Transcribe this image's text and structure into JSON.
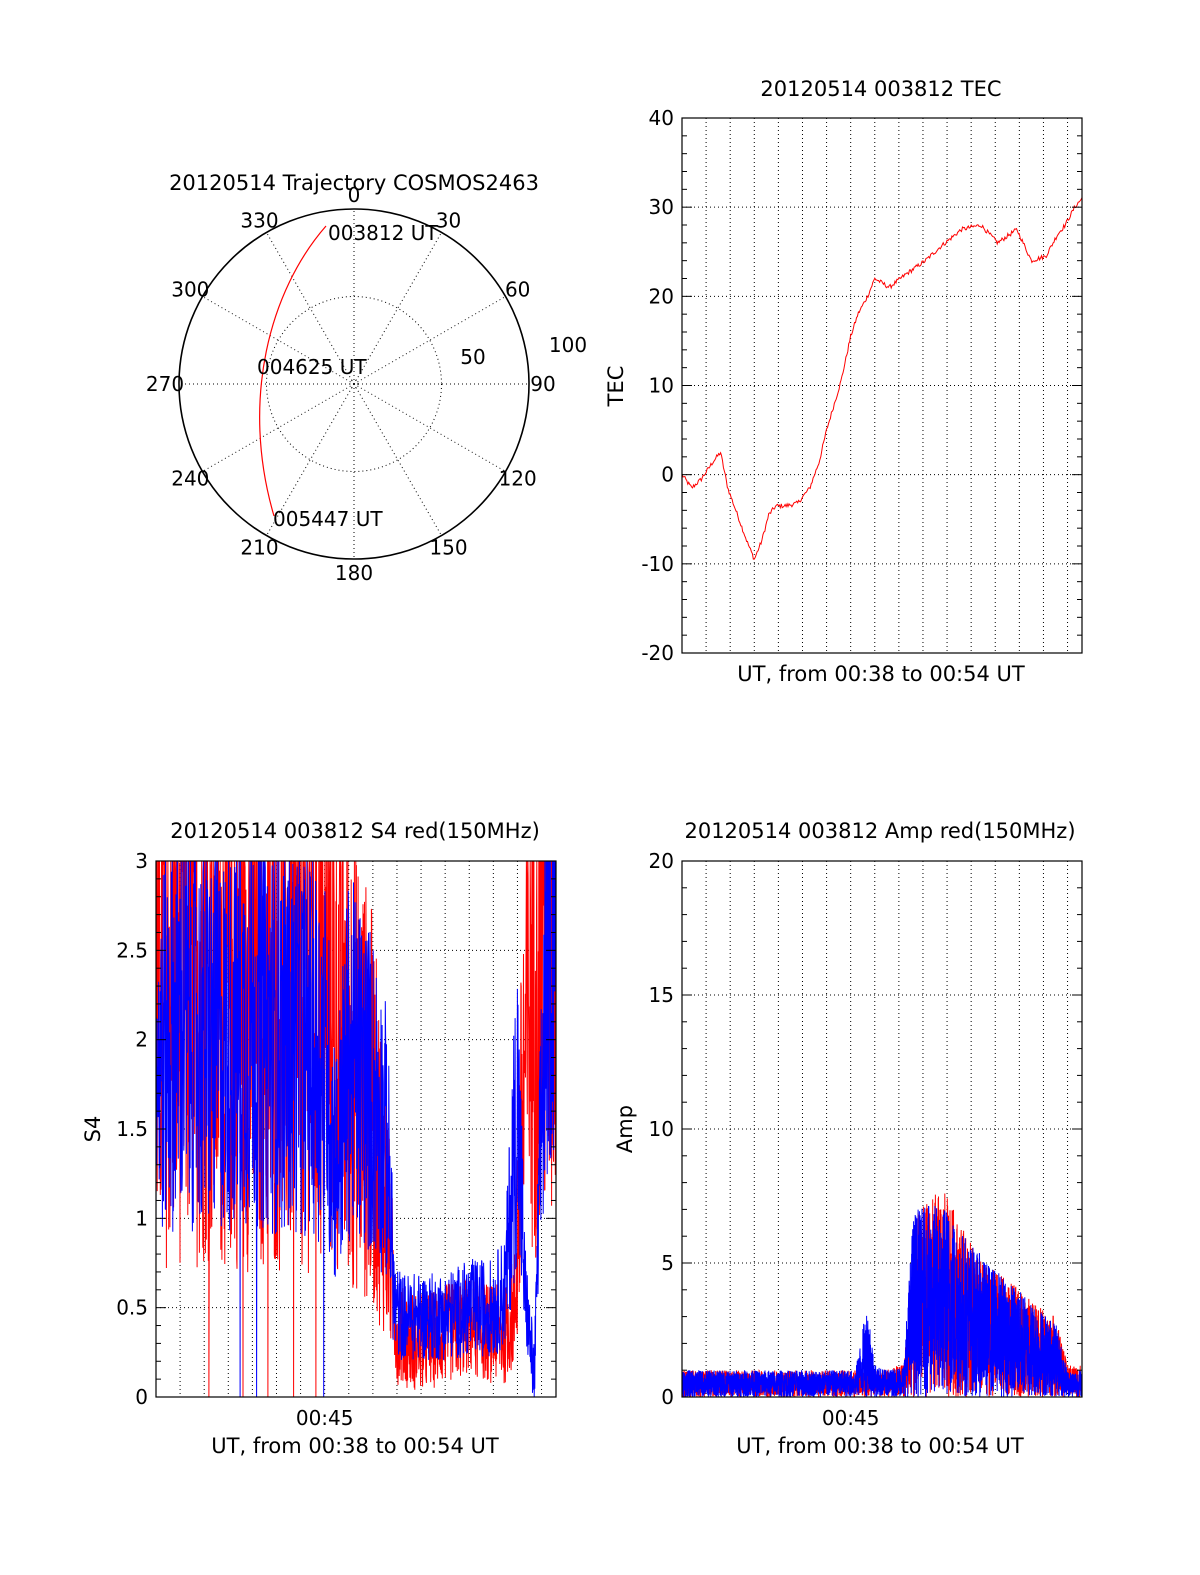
{
  "colors": {
    "red": "#ff0000",
    "blue": "#0000ff",
    "axis": "#000000"
  },
  "polar": {
    "title": "20120514 Trajectory COSMOS2463",
    "azimuth_labels": [
      "0",
      "30",
      "60",
      "90",
      "120",
      "150",
      "180",
      "210",
      "240",
      "270",
      "300",
      "330"
    ],
    "radius_labels": [
      "50",
      "100"
    ],
    "zenith_angle_max": 100,
    "annotations": {
      "start": "003812 UT",
      "mid": "004625 UT",
      "end": "005447 UT"
    }
  },
  "chart_data": [
    {
      "id": "tec",
      "type": "line",
      "title": "20120514 003812 TEC",
      "xlabel": "UT, from 00:38 to 00:54 UT",
      "ylabel": "TEC",
      "xlim": [
        0,
        16.6
      ],
      "ylim": [
        -20,
        40
      ],
      "yticks": [
        "-20",
        "-10",
        "0",
        "10",
        "20",
        "30",
        "40"
      ],
      "xticks": [],
      "grid": true,
      "series": [
        {
          "color": "red",
          "noise": 0.5,
          "x": [
            0,
            0.4,
            0.8,
            1.3,
            1.6,
            1.9,
            2.3,
            2.7,
            3.0,
            3.3,
            3.6,
            3.9,
            4.3,
            4.8,
            5.3,
            5.7,
            6.0,
            6.6,
            7.0,
            7.3,
            7.7,
            8.0,
            8.6,
            9.3,
            10.1,
            10.7,
            11.6,
            12.4,
            13.1,
            13.9,
            14.5,
            15.1,
            15.6,
            15.9,
            16.3,
            16.6
          ],
          "y": [
            0,
            -1.5,
            -0.5,
            1.5,
            2.5,
            -1.5,
            -4.5,
            -7.5,
            -9.5,
            -7.5,
            -4.5,
            -3.5,
            -3.5,
            -3.2,
            -1.5,
            1.5,
            5.0,
            10.5,
            15.5,
            18.0,
            20.0,
            22.0,
            21.0,
            22.5,
            24.0,
            25.5,
            27.5,
            28.0,
            26.0,
            27.5,
            24.0,
            24.5,
            27.0,
            28.0,
            30.0,
            31.0
          ]
        }
      ]
    },
    {
      "id": "s4",
      "type": "line",
      "title": "20120514 003812 S4 red(150MHz)",
      "xlabel": "UT, from 00:38 to 00:54 UT",
      "ylabel": "S4",
      "xlim": [
        0,
        16.6
      ],
      "ylim": [
        0,
        3
      ],
      "yticks": [
        "0",
        "0.5",
        "1",
        "1.5",
        "2",
        "2.5",
        "3"
      ],
      "xticks": [
        {
          "x": 7,
          "label": "00:45"
        }
      ],
      "grid": true,
      "series": [
        {
          "color": "red",
          "noise": 0.7,
          "x": [
            0,
            1,
            2,
            3,
            4,
            5,
            6,
            7,
            8,
            9,
            9.6,
            10.0,
            11,
            12,
            13,
            14,
            14.5,
            14.9,
            15.2,
            15.6,
            16.0,
            16.6
          ],
          "y": [
            2.3,
            2.4,
            2.4,
            2.3,
            2.3,
            2.2,
            2.3,
            2.2,
            2.0,
            1.6,
            1.0,
            0.35,
            0.3,
            0.35,
            0.4,
            0.35,
            0.35,
            0.5,
            1.6,
            2.5,
            2.7,
            2.8
          ]
        },
        {
          "color": "blue",
          "noise": 0.55,
          "x": [
            0,
            1,
            2,
            3,
            4,
            5,
            6,
            7,
            7.5,
            8,
            9,
            9.6,
            9.9,
            10.2,
            11,
            12,
            13,
            14,
            14.5,
            15.0,
            15.3,
            15.7,
            16.0,
            16.3,
            16.6
          ],
          "y": [
            1.9,
            2.1,
            2.0,
            2.0,
            2.1,
            2.0,
            2.0,
            1.9,
            1.3,
            1.9,
            1.7,
            1.4,
            0.5,
            0.45,
            0.45,
            0.45,
            0.5,
            0.5,
            0.6,
            1.7,
            0.6,
            0.1,
            1.6,
            2.8,
            2.9
          ]
        }
      ]
    },
    {
      "id": "amp",
      "type": "line",
      "title": "20120514 003812 Amp red(150MHz)",
      "xlabel": "UT, from 00:38 to 00:54 UT",
      "ylabel": "Amp",
      "xlim": [
        0,
        16.6
      ],
      "ylim": [
        0,
        20
      ],
      "yticks": [
        "0",
        "5",
        "10",
        "15",
        "20"
      ],
      "xticks": [
        {
          "x": 7,
          "label": "00:45"
        }
      ],
      "grid": true,
      "series": [
        {
          "color": "red",
          "noise": 1.0,
          "x": [
            0,
            4,
            7.5,
            8.0,
            9.2,
            9.8,
            10.5,
            11,
            11.8,
            12.5,
            13.5,
            14.5,
            15.5,
            16.0,
            16.6
          ],
          "y": [
            0.5,
            0.5,
            0.5,
            0.5,
            0.6,
            3.5,
            3.8,
            3.8,
            3.0,
            2.5,
            2.2,
            1.8,
            1.5,
            0.6,
            0.6
          ]
        },
        {
          "color": "blue",
          "noise": 1.0,
          "x": [
            0,
            4,
            7.2,
            7.7,
            8.0,
            8.5,
            9.2,
            9.6,
            10.5,
            11,
            11.8,
            12.5,
            13.5,
            14.5,
            15.5,
            16.0,
            16.6
          ],
          "y": [
            0.5,
            0.5,
            0.5,
            1.8,
            0.6,
            0.5,
            0.6,
            3.5,
            3.6,
            3.6,
            3.0,
            2.6,
            2.2,
            1.8,
            1.4,
            0.5,
            0.5
          ]
        }
      ]
    }
  ]
}
